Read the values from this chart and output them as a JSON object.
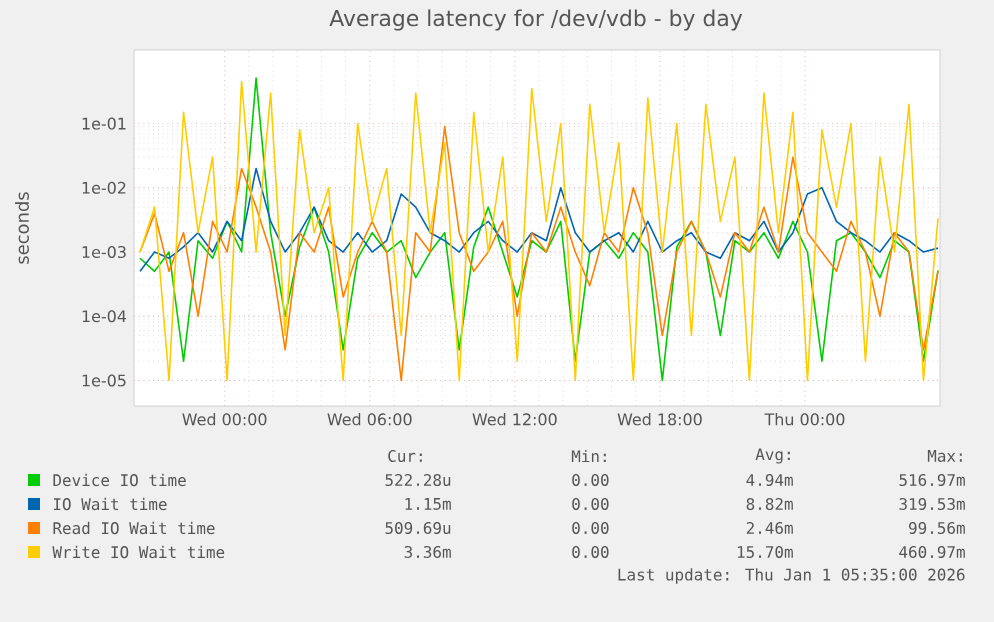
{
  "chart_data": {
    "type": "line",
    "title": "Average latency for /dev/vdb - by day",
    "ylabel": "seconds",
    "x": [
      "2025-12-30T20:30",
      "2025-12-30T21:06",
      "2025-12-30T21:42",
      "2025-12-30T22:18",
      "2025-12-30T22:54",
      "2025-12-30T23:30",
      "2025-12-31T00:06",
      "2025-12-31T00:42",
      "2025-12-31T01:18",
      "2025-12-31T01:54",
      "2025-12-31T02:30",
      "2025-12-31T03:06",
      "2025-12-31T03:42",
      "2025-12-31T04:18",
      "2025-12-31T04:54",
      "2025-12-31T05:30",
      "2025-12-31T06:06",
      "2025-12-31T06:42",
      "2025-12-31T07:18",
      "2025-12-31T07:54",
      "2025-12-31T08:30",
      "2025-12-31T09:06",
      "2025-12-31T09:42",
      "2025-12-31T10:18",
      "2025-12-31T10:54",
      "2025-12-31T11:30",
      "2025-12-31T12:06",
      "2025-12-31T12:42",
      "2025-12-31T13:18",
      "2025-12-31T13:54",
      "2025-12-31T14:30",
      "2025-12-31T15:06",
      "2025-12-31T15:42",
      "2025-12-31T16:18",
      "2025-12-31T16:54",
      "2025-12-31T17:30",
      "2025-12-31T18:06",
      "2025-12-31T18:42",
      "2025-12-31T19:18",
      "2025-12-31T19:54",
      "2025-12-31T20:30",
      "2025-12-31T21:06",
      "2025-12-31T21:42",
      "2025-12-31T22:18",
      "2025-12-31T22:54",
      "2025-12-31T23:30",
      "2026-01-01T00:06",
      "2026-01-01T00:42",
      "2026-01-01T01:18",
      "2026-01-01T01:54",
      "2026-01-01T02:30",
      "2026-01-01T03:06",
      "2026-01-01T03:42",
      "2026-01-01T04:18",
      "2026-01-01T04:54",
      "2026-01-01T05:30"
    ],
    "series": [
      {
        "name": "Device IO time",
        "color": "#00cc00",
        "values": [
          0.0008,
          0.0005,
          0.001,
          2e-05,
          0.0015,
          0.0008,
          0.003,
          0.001,
          0.51,
          0.002,
          0.0001,
          0.0012,
          0.005,
          0.001,
          3e-05,
          0.0008,
          0.002,
          0.001,
          0.0015,
          0.0004,
          0.001,
          0.002,
          3e-05,
          0.0012,
          0.005,
          0.001,
          0.0002,
          0.0015,
          0.001,
          0.003,
          2e-05,
          0.001,
          0.0015,
          0.0008,
          0.002,
          0.001,
          1e-05,
          0.0012,
          0.003,
          0.001,
          5e-05,
          0.0015,
          0.001,
          0.002,
          0.0008,
          0.003,
          0.001,
          2e-05,
          0.0015,
          0.002,
          0.001,
          0.0004,
          0.0015,
          0.001,
          2e-05,
          0.00052
        ]
      },
      {
        "name": "IO Wait time",
        "color": "#0066b3",
        "values": [
          0.0005,
          0.001,
          0.0008,
          0.0012,
          0.002,
          0.001,
          0.003,
          0.0015,
          0.02,
          0.003,
          0.001,
          0.002,
          0.005,
          0.0015,
          0.001,
          0.002,
          0.001,
          0.0015,
          0.008,
          0.005,
          0.002,
          0.0015,
          0.001,
          0.002,
          0.003,
          0.0015,
          0.001,
          0.002,
          0.0015,
          0.01,
          0.002,
          0.001,
          0.0015,
          0.002,
          0.001,
          0.003,
          0.001,
          0.0015,
          0.002,
          0.001,
          0.0008,
          0.002,
          0.0015,
          0.003,
          0.001,
          0.002,
          0.008,
          0.01,
          0.003,
          0.002,
          0.0015,
          0.001,
          0.002,
          0.0015,
          0.001,
          0.00115
        ]
      },
      {
        "name": "Read IO Wait time",
        "color": "#ff8000",
        "values": [
          0.001,
          0.004,
          0.0005,
          0.002,
          0.0001,
          0.003,
          0.001,
          0.02,
          0.005,
          0.001,
          3e-05,
          0.002,
          0.001,
          0.005,
          0.0002,
          0.001,
          0.003,
          0.001,
          1e-05,
          0.002,
          0.001,
          0.09,
          0.002,
          0.0005,
          0.001,
          0.003,
          0.0001,
          0.002,
          0.001,
          0.005,
          0.001,
          0.0003,
          0.002,
          0.001,
          0.01,
          0.002,
          5e-05,
          0.001,
          0.003,
          0.001,
          0.0002,
          0.002,
          0.001,
          0.005,
          0.001,
          0.03,
          0.002,
          0.001,
          0.0005,
          0.003,
          0.001,
          0.0001,
          0.002,
          0.001,
          3e-05,
          0.00051
        ]
      },
      {
        "name": "Write IO Wait time",
        "color": "#ffcc00",
        "values": [
          0.001,
          0.005,
          1e-05,
          0.15,
          0.002,
          0.03,
          1e-05,
          0.45,
          0.001,
          0.3,
          5e-05,
          0.08,
          0.002,
          0.01,
          1e-05,
          0.1,
          0.003,
          0.02,
          5e-05,
          0.3,
          0.002,
          0.05,
          1e-05,
          0.15,
          0.001,
          0.03,
          2e-05,
          0.35,
          0.003,
          0.1,
          1e-05,
          0.2,
          0.002,
          0.05,
          1e-05,
          0.25,
          0.001,
          0.1,
          5e-05,
          0.2,
          0.003,
          0.03,
          1e-05,
          0.3,
          0.002,
          0.15,
          1e-05,
          0.08,
          0.005,
          0.1,
          2e-05,
          0.03,
          0.001,
          0.2,
          1e-05,
          0.00336
        ]
      }
    ],
    "xlim": [
      "2025-12-30T20:15",
      "2026-01-01T05:35"
    ],
    "ylim": [
      4e-06,
      1.4
    ],
    "xticks": [
      {
        "value": "2025-12-31T00:00",
        "label": "Wed 00:00"
      },
      {
        "value": "2025-12-31T06:00",
        "label": "Wed 06:00"
      },
      {
        "value": "2025-12-31T12:00",
        "label": "Wed 12:00"
      },
      {
        "value": "2025-12-31T18:00",
        "label": "Wed 18:00"
      },
      {
        "value": "2026-01-01T00:00",
        "label": "Thu 00:00"
      }
    ],
    "yticks": [
      {
        "value": 1e-05,
        "label": "1e-05"
      },
      {
        "value": 0.0001,
        "label": "1e-04"
      },
      {
        "value": 0.001,
        "label": "1e-03"
      },
      {
        "value": 0.01,
        "label": "1e-02"
      },
      {
        "value": 0.1,
        "label": "1e-01"
      }
    ],
    "log": "y",
    "grid": true,
    "legend": "bottom",
    "annotations": [
      "Cur:",
      "Min:",
      "Avg:",
      "Max:",
      "522.28u",
      "0.00",
      "4.94m",
      "516.97m",
      "1.15m",
      "0.00",
      "8.82m",
      "319.53m",
      "509.69u",
      "0.00",
      "2.46m",
      "99.56m",
      "3.36m",
      "0.00",
      "15.70m",
      "460.97m",
      "Last update: Thu Jan  1 05:35:00 2026"
    ]
  }
}
